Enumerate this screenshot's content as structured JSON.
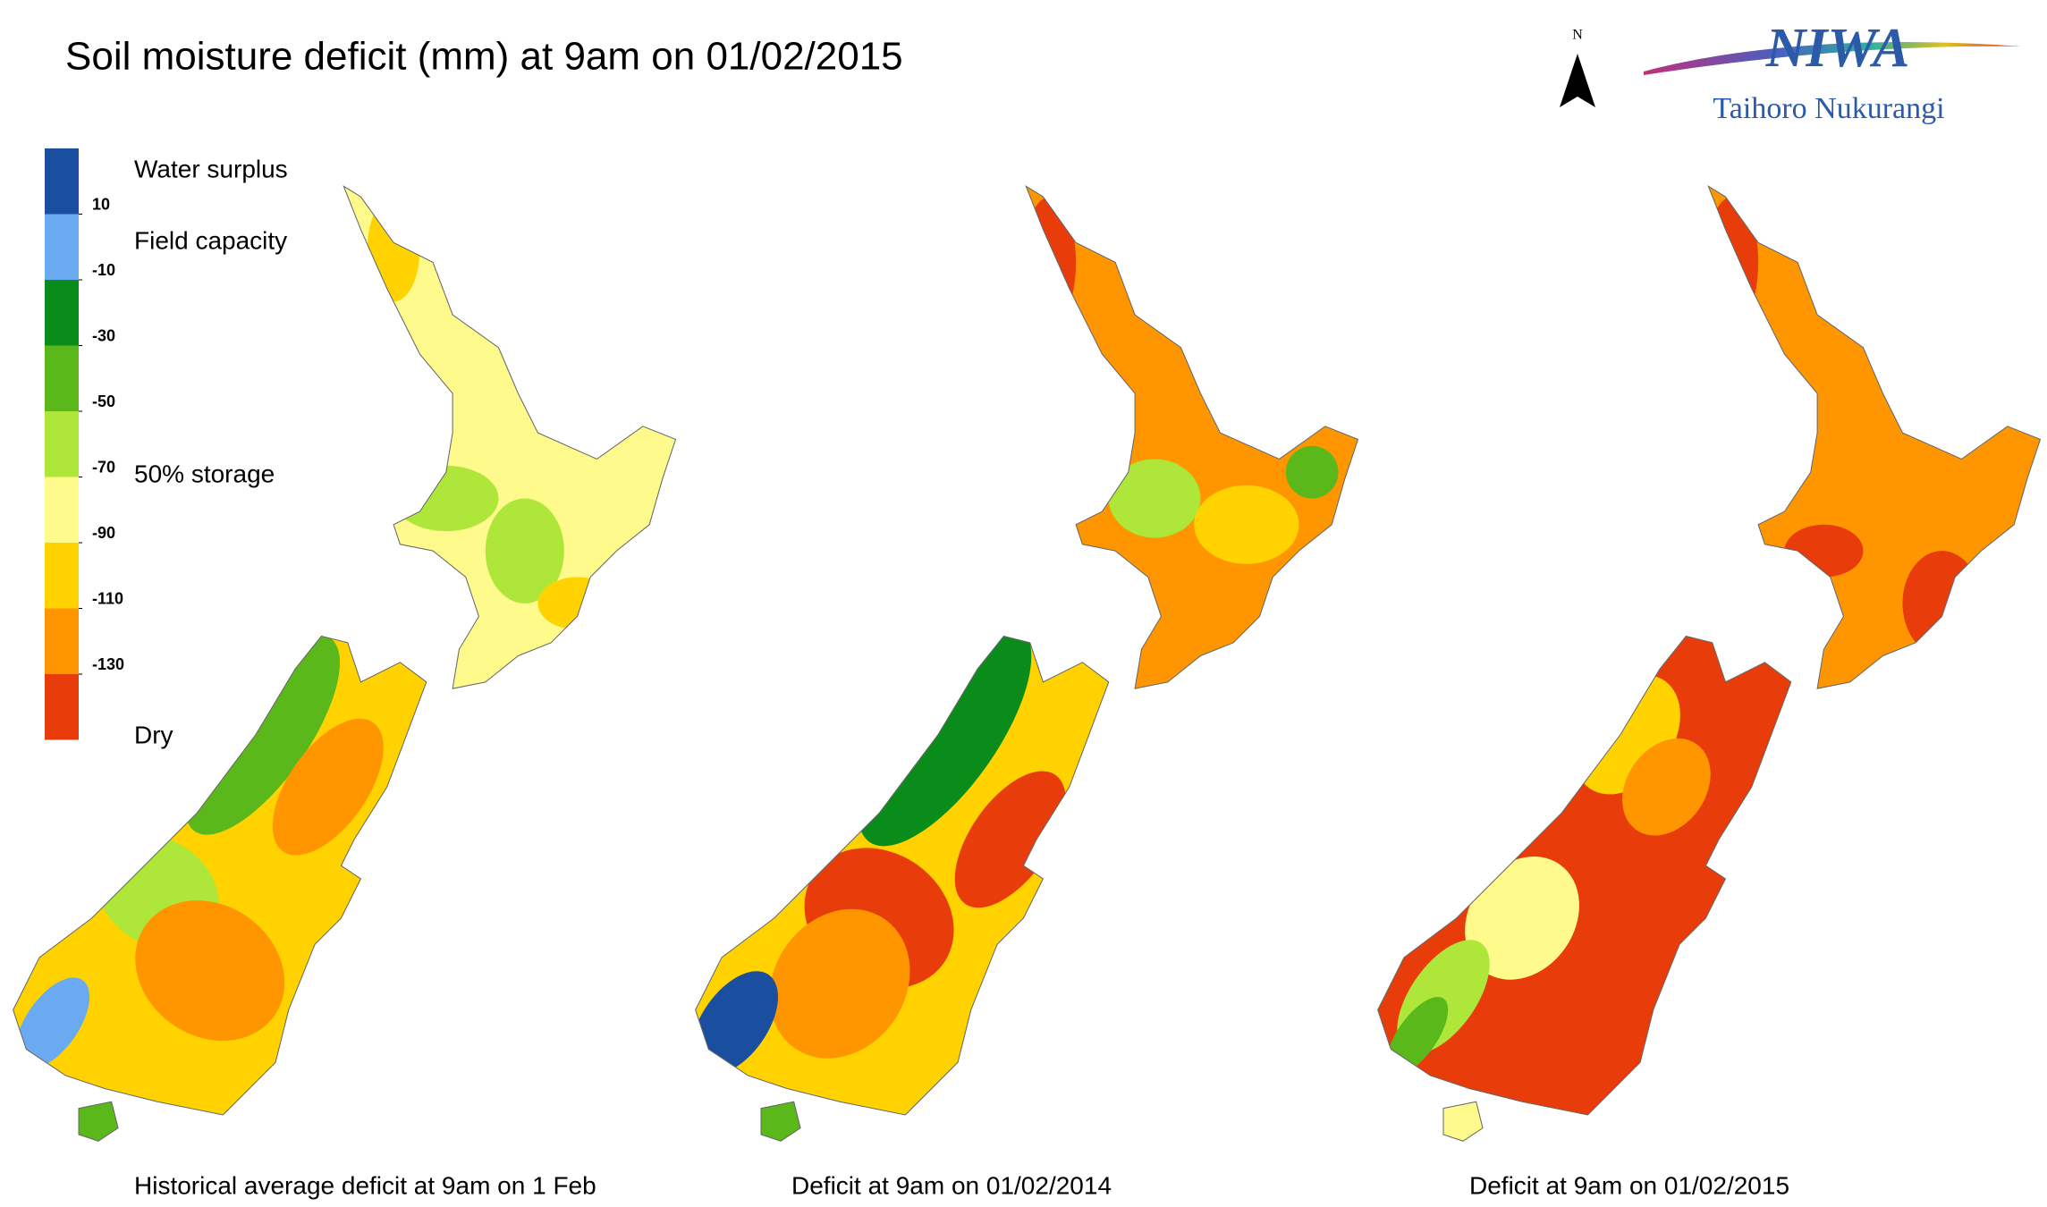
{
  "title": "Soil moisture deficit (mm) at  9am on 01/02/2015",
  "logo": {
    "name": "NIWA",
    "subtitle": "Taihoro Nukurangi"
  },
  "north_arrow": "N",
  "legend": {
    "colors": [
      "#1a4fa0",
      "#6aaaf0",
      "#0a8c1a",
      "#5ab81a",
      "#aee63a",
      "#fffa8c",
      "#ffd200",
      "#ff9600",
      "#e83c0a"
    ],
    "ticks": [
      10,
      -10,
      -30,
      -50,
      -70,
      -90,
      -110,
      -130
    ],
    "labels": [
      "Water surplus",
      "Field capacity",
      "50% storage",
      "Dry"
    ]
  },
  "maps": [
    {
      "caption": "Historical average deficit at  9am on 1 Feb"
    },
    {
      "caption": "Deficit at  9am on 01/02/2014"
    },
    {
      "caption": "Deficit at  9am on 01/02/2015"
    }
  ]
}
